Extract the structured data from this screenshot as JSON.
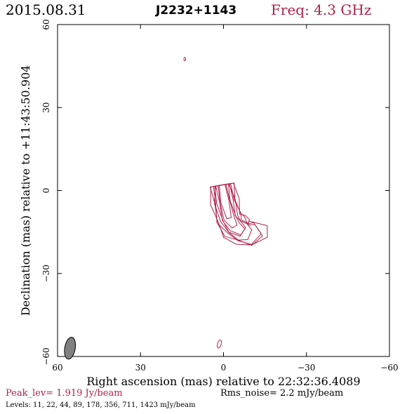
{
  "header": {
    "date": "2015.08.31",
    "source": "J2232+1143",
    "freq": "Freq: 4.3 GHz"
  },
  "footer": {
    "peak": "Peak_lev=  1.919 Jy/beam",
    "rms": "Rms_noise=  2.2 mJy/beam",
    "levels": "Levels:  11,  22,  44,  89, 178, 356, 711, 1423 mJy/beam"
  },
  "colors": {
    "contour": "#b0204a",
    "beam": "#808080"
  },
  "chart_data": {
    "type": "contour",
    "xlabel": "Right ascension (mas) relative to 22:32:36.4089",
    "ylabel": "Declination (mas) relative to +11:43:50.904",
    "xlim": [
      60,
      -60
    ],
    "ylim": [
      -60,
      60
    ],
    "xticks": [
      60,
      30,
      0,
      -30,
      -60
    ],
    "yticks": [
      60,
      30,
      0,
      -30,
      -60
    ],
    "xtick_labels": [
      "60",
      "30",
      "0",
      "−30",
      "−60"
    ],
    "ytick_labels": [
      "60",
      "30",
      "0",
      "−30",
      "−60"
    ],
    "levels_mJy": [
      11,
      22,
      44,
      89,
      178,
      356,
      711,
      1423
    ],
    "beam": {
      "x": 55.5,
      "y": -57,
      "major_mas": 4.0,
      "minor_mas": 1.9,
      "pa_deg": 10
    },
    "components": [
      {
        "name": "core-jet",
        "path": [
          [
            0.5,
            2
          ],
          [
            -0.5,
            -4
          ],
          [
            -2,
            -10
          ],
          [
            -4,
            -13
          ],
          [
            -7,
            -15
          ],
          [
            -9.5,
            -16
          ],
          [
            -12.5,
            -14
          ],
          [
            -13,
            -12
          ]
        ],
        "levels_count": 8
      },
      {
        "name": "isolated-spot-north",
        "x": 14,
        "y": 47.5
      },
      {
        "name": "isolated-spot-south",
        "x": 1.5,
        "y": -55.5
      }
    ]
  }
}
